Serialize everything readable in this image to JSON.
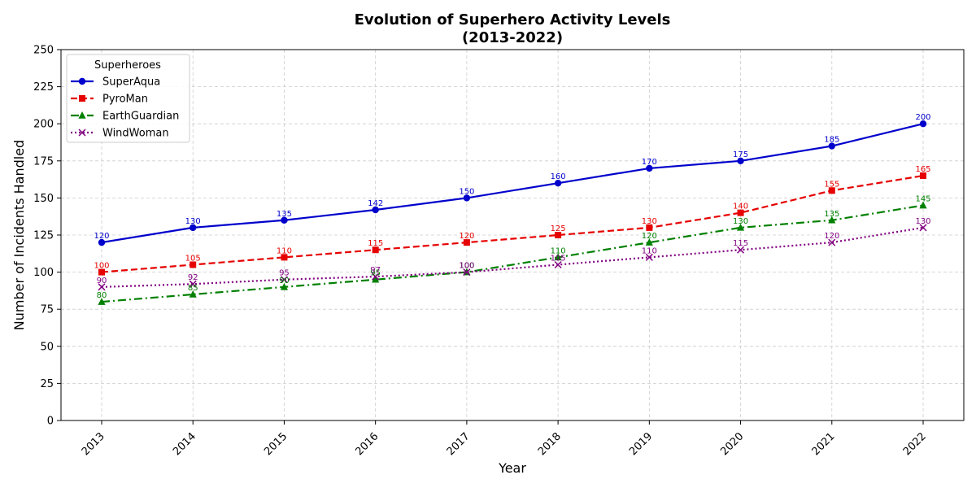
{
  "chart_data": {
    "type": "line",
    "title_lines": [
      "Evolution of Superhero Activity Levels",
      "(2013-2022)"
    ],
    "xlabel": "Year",
    "ylabel": "Number of Incidents Handled",
    "x": [
      "2013",
      "2014",
      "2015",
      "2016",
      "2017",
      "2018",
      "2019",
      "2020",
      "2021",
      "2022"
    ],
    "ylim": [
      0,
      250
    ],
    "yticks": [
      "0",
      "25",
      "50",
      "75",
      "100",
      "125",
      "150",
      "175",
      "200",
      "225",
      "250"
    ],
    "grid": true,
    "legend": {
      "title": "Superheroes",
      "placement": "top-left"
    },
    "series": [
      {
        "name": "SuperAqua",
        "color": "#0000cc",
        "marker": "circle",
        "dash": "solid",
        "values": [
          120,
          130,
          135,
          142,
          150,
          160,
          170,
          175,
          185,
          200
        ],
        "labels": [
          "120",
          "130",
          "135",
          "142",
          "150",
          "160",
          "170",
          "175",
          "185",
          "200"
        ]
      },
      {
        "name": "PyroMan",
        "color": "#e60000",
        "marker": "square",
        "dash": "dashed",
        "values": [
          100,
          105,
          110,
          115,
          120,
          125,
          130,
          140,
          155,
          165
        ],
        "labels": [
          "100",
          "105",
          "110",
          "115",
          "120",
          "125",
          "130",
          "140",
          "155",
          "165"
        ]
      },
      {
        "name": "EarthGuardian",
        "color": "#008000",
        "marker": "triangle",
        "dash": "dashdot",
        "values": [
          80,
          85,
          90,
          95,
          100,
          110,
          120,
          130,
          135,
          145
        ],
        "labels": [
          "80",
          "85",
          "90",
          "95",
          "100",
          "110",
          "120",
          "130",
          "135",
          "145"
        ]
      },
      {
        "name": "WindWoman",
        "color": "#800080",
        "marker": "x",
        "dash": "dotted",
        "values": [
          90,
          92,
          95,
          97,
          100,
          105,
          110,
          115,
          120,
          130
        ],
        "labels": [
          "90",
          "92",
          "95",
          "97",
          "100",
          "105",
          "110",
          "115",
          "120",
          "130"
        ]
      }
    ]
  }
}
